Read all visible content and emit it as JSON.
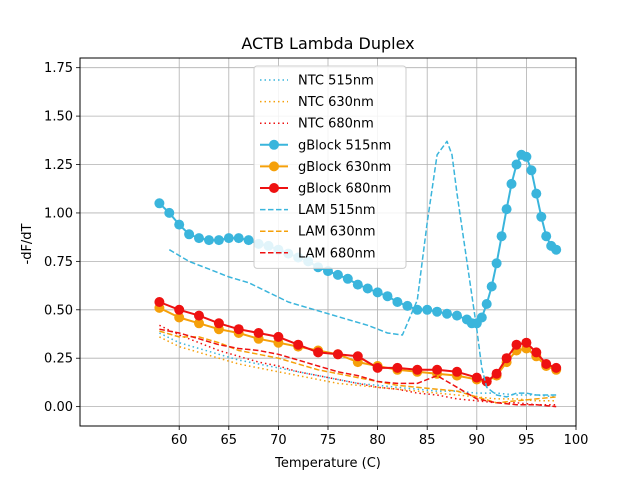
{
  "chart_data": {
    "type": "line",
    "title": "ACTB Lambda Duplex",
    "xlabel": "Temperature (C)",
    "ylabel": "-dF/dT",
    "xlim": [
      50,
      100
    ],
    "ylim": [
      -0.1,
      1.8
    ],
    "xticks": [
      60,
      65,
      70,
      75,
      80,
      85,
      90,
      95,
      100
    ],
    "yticks": [
      0.0,
      0.25,
      0.5,
      0.75,
      1.0,
      1.25,
      1.5,
      1.75
    ],
    "ytick_labels": [
      "0.00",
      "0.25",
      "0.50",
      "0.75",
      "1.00",
      "1.25",
      "1.50",
      "1.75"
    ],
    "grid": true,
    "legend_position": "upper-center",
    "series": [
      {
        "name": "NTC 515nm",
        "color": "#3ab5dc",
        "style": "dotted",
        "marker": false,
        "x": [
          58,
          60,
          62,
          64,
          66,
          68,
          70,
          72,
          74,
          76,
          78,
          80,
          82,
          84,
          86,
          88,
          90,
          92,
          94,
          96,
          98
        ],
        "y": [
          0.38,
          0.33,
          0.3,
          0.27,
          0.24,
          0.22,
          0.2,
          0.18,
          0.16,
          0.14,
          0.12,
          0.11,
          0.1,
          0.09,
          0.08,
          0.08,
          0.07,
          0.07,
          0.06,
          0.06,
          0.05
        ]
      },
      {
        "name": "NTC 630nm",
        "color": "#f5a00a",
        "style": "dotted",
        "marker": false,
        "x": [
          58,
          60,
          62,
          64,
          66,
          68,
          70,
          72,
          74,
          76,
          78,
          80,
          82,
          84,
          86,
          88,
          90,
          92,
          94,
          96,
          98
        ],
        "y": [
          0.36,
          0.31,
          0.28,
          0.25,
          0.22,
          0.2,
          0.18,
          0.16,
          0.14,
          0.12,
          0.11,
          0.1,
          0.09,
          0.08,
          0.07,
          0.06,
          0.05,
          0.04,
          0.04,
          0.03,
          0.03
        ]
      },
      {
        "name": "NTC 680nm",
        "color": "#ee1111",
        "style": "dotted",
        "marker": false,
        "x": [
          58,
          60,
          62,
          64,
          66,
          68,
          70,
          72,
          74,
          76,
          78,
          80,
          82,
          84,
          86,
          88,
          90,
          92,
          94,
          96,
          98
        ],
        "y": [
          0.42,
          0.37,
          0.33,
          0.29,
          0.26,
          0.23,
          0.21,
          0.18,
          0.16,
          0.14,
          0.12,
          0.1,
          0.09,
          0.07,
          0.06,
          0.04,
          0.03,
          0.02,
          0.02,
          0.01,
          0.01
        ]
      },
      {
        "name": "gBlock 515nm",
        "color": "#3ab5dc",
        "style": "solid",
        "marker": true,
        "x": [
          58,
          59,
          60,
          61,
          62,
          63,
          64,
          65,
          66,
          67,
          68,
          69,
          70,
          71,
          72,
          73,
          74,
          75,
          76,
          77,
          78,
          79,
          80,
          81,
          82,
          83,
          84,
          85,
          86,
          87,
          88,
          89,
          89.5,
          90,
          90.5,
          91,
          91.5,
          92,
          92.5,
          93,
          93.5,
          94,
          94.5,
          95,
          95.5,
          96,
          96.5,
          97,
          97.5,
          98
        ],
        "y": [
          1.05,
          1.0,
          0.94,
          0.89,
          0.87,
          0.86,
          0.86,
          0.87,
          0.87,
          0.86,
          0.84,
          0.83,
          0.81,
          0.79,
          0.77,
          0.75,
          0.72,
          0.7,
          0.68,
          0.66,
          0.63,
          0.61,
          0.59,
          0.57,
          0.54,
          0.52,
          0.5,
          0.5,
          0.49,
          0.48,
          0.47,
          0.45,
          0.43,
          0.43,
          0.46,
          0.53,
          0.62,
          0.74,
          0.88,
          1.02,
          1.15,
          1.25,
          1.3,
          1.29,
          1.22,
          1.1,
          0.98,
          0.88,
          0.83,
          0.81
        ]
      },
      {
        "name": "gBlock 630nm",
        "color": "#f5a00a",
        "style": "solid",
        "marker": true,
        "x": [
          58,
          60,
          62,
          64,
          66,
          68,
          70,
          72,
          74,
          76,
          78,
          80,
          82,
          84,
          86,
          88,
          90,
          91,
          92,
          93,
          94,
          95,
          96,
          97,
          98
        ],
        "y": [
          0.51,
          0.46,
          0.43,
          0.4,
          0.38,
          0.35,
          0.33,
          0.31,
          0.29,
          0.27,
          0.23,
          0.21,
          0.19,
          0.18,
          0.17,
          0.16,
          0.14,
          0.13,
          0.16,
          0.23,
          0.29,
          0.3,
          0.26,
          0.21,
          0.19
        ]
      },
      {
        "name": "gBlock 680nm",
        "color": "#ee1111",
        "style": "solid",
        "marker": true,
        "x": [
          58,
          60,
          62,
          64,
          66,
          68,
          70,
          72,
          74,
          76,
          78,
          80,
          82,
          84,
          86,
          88,
          90,
          91,
          92,
          93,
          94,
          95,
          96,
          97,
          98
        ],
        "y": [
          0.54,
          0.5,
          0.47,
          0.43,
          0.4,
          0.38,
          0.36,
          0.32,
          0.28,
          0.27,
          0.26,
          0.2,
          0.2,
          0.19,
          0.19,
          0.18,
          0.15,
          0.13,
          0.17,
          0.25,
          0.32,
          0.33,
          0.28,
          0.22,
          0.2
        ]
      },
      {
        "name": "LAM 515nm",
        "color": "#3ab5dc",
        "style": "dashed",
        "marker": false,
        "x": [
          59,
          61,
          63,
          65,
          67,
          69,
          71,
          73,
          75,
          77,
          79,
          81,
          82.5,
          84,
          85,
          86,
          87,
          87.5,
          88,
          89,
          90,
          90.5,
          91,
          92,
          93,
          94,
          95,
          96,
          97,
          98
        ],
        "y": [
          0.81,
          0.75,
          0.71,
          0.67,
          0.64,
          0.59,
          0.54,
          0.51,
          0.48,
          0.45,
          0.42,
          0.38,
          0.37,
          0.55,
          0.95,
          1.3,
          1.37,
          1.3,
          1.1,
          0.75,
          0.4,
          0.2,
          0.1,
          0.06,
          0.05,
          0.07,
          0.07,
          0.06,
          0.06,
          0.06
        ]
      },
      {
        "name": "LAM 630nm",
        "color": "#f5a00a",
        "style": "dashed",
        "marker": false,
        "x": [
          58,
          60,
          62,
          64,
          66,
          68,
          70,
          72,
          74,
          76,
          78,
          80,
          82,
          84,
          86,
          88,
          90,
          92,
          94,
          96,
          98
        ],
        "y": [
          0.39,
          0.36,
          0.36,
          0.33,
          0.29,
          0.27,
          0.25,
          0.22,
          0.19,
          0.17,
          0.15,
          0.13,
          0.11,
          0.1,
          0.09,
          0.08,
          0.05,
          0.02,
          0.03,
          0.04,
          0.05
        ]
      },
      {
        "name": "LAM 680nm",
        "color": "#ee1111",
        "style": "dashed",
        "marker": false,
        "x": [
          58,
          60,
          62,
          64,
          66,
          68,
          70,
          72,
          74,
          76,
          78,
          80,
          82,
          84,
          86,
          88,
          90,
          92,
          94,
          96,
          98
        ],
        "y": [
          0.4,
          0.38,
          0.35,
          0.32,
          0.3,
          0.29,
          0.27,
          0.24,
          0.21,
          0.18,
          0.16,
          0.13,
          0.12,
          0.12,
          0.16,
          0.1,
          0.04,
          0.02,
          0.01,
          0.01,
          0.0
        ]
      }
    ]
  }
}
